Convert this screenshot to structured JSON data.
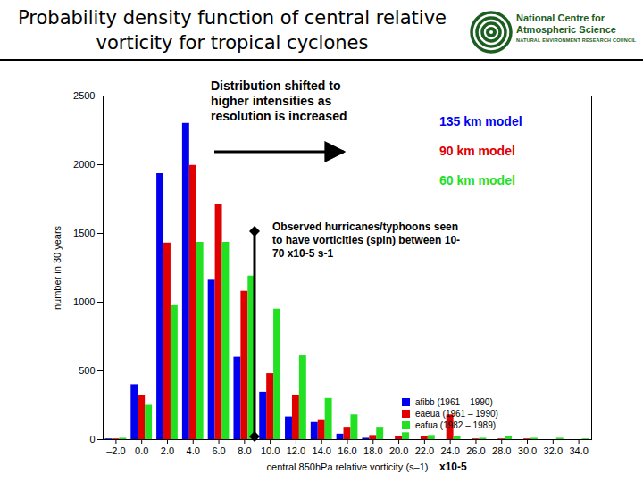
{
  "chart_data": {
    "type": "bar",
    "title": "Probability density function of central relative vorticity for tropical cyclones",
    "logo": [
      "National Centre for",
      "Atmospheric Science",
      "NATURAL ENVIRONMENT RESEARCH COUNCIL"
    ],
    "xlabel": "central 850hPa relative vorticity (s–1)",
    "x_unit": "x10-5",
    "ylabel": "number in 30 years",
    "annotations": [
      "Distribution shifted to higher intensities as resolution is increased",
      "Observed hurricanes/typhoons seen to have vorticities (spin) between 10-70 x10-5 s-1"
    ],
    "x": [
      -2,
      0,
      2,
      4,
      6,
      8,
      10,
      12,
      14,
      16,
      18,
      20,
      22,
      24,
      26,
      28,
      30,
      32,
      34
    ],
    "series": [
      {
        "name": "afibb (1961 – 1990)",
        "model": "135 km model",
        "color": "#0000ee",
        "values": [
          5,
          400,
          1935,
          2300,
          1160,
          600,
          345,
          165,
          125,
          40,
          10,
          0,
          0,
          0,
          0,
          0,
          0,
          0,
          0
        ]
      },
      {
        "name": "eaeua (1961 – 1990)",
        "model": "90 km model",
        "color": "#e00000",
        "values": [
          5,
          320,
          1430,
          1995,
          1710,
          1080,
          480,
          325,
          145,
          90,
          30,
          20,
          25,
          180,
          5,
          5,
          5,
          0,
          0
        ]
      },
      {
        "name": "eafua (1982 – 1989)",
        "model": "60 km model",
        "color": "#22e022",
        "values": [
          10,
          250,
          975,
          1435,
          1435,
          1190,
          950,
          610,
          300,
          180,
          90,
          50,
          30,
          25,
          10,
          25,
          10,
          10,
          5
        ]
      }
    ],
    "xlim": [
      -3,
      35
    ],
    "xticks": [
      {
        "value": -2,
        "label": "–2.0"
      },
      {
        "value": 0,
        "label": "0.0"
      },
      {
        "value": 2,
        "label": "2.0"
      },
      {
        "value": 4,
        "label": "4.0"
      },
      {
        "value": 6,
        "label": "6.0"
      },
      {
        "value": 8,
        "label": "8.0"
      },
      {
        "value": 10,
        "label": "10.0"
      },
      {
        "value": 12,
        "label": "12.0"
      },
      {
        "value": 14,
        "label": "14.0"
      },
      {
        "value": 16,
        "label": "16.0"
      },
      {
        "value": 18,
        "label": "18.0"
      },
      {
        "value": 20,
        "label": "20.0"
      },
      {
        "value": 22,
        "label": "22.0"
      },
      {
        "value": 24,
        "label": "24.0"
      },
      {
        "value": 26,
        "label": "26.0"
      },
      {
        "value": 28,
        "label": "28.0"
      },
      {
        "value": 30,
        "label": "30.0"
      },
      {
        "value": 32,
        "label": "32.0"
      },
      {
        "value": 34,
        "label": "34.0"
      }
    ],
    "ylim": [
      0,
      2500
    ],
    "yticks": [
      0,
      500,
      1000,
      1500,
      2000,
      2500
    ],
    "grid": false,
    "legend": "lower right"
  }
}
